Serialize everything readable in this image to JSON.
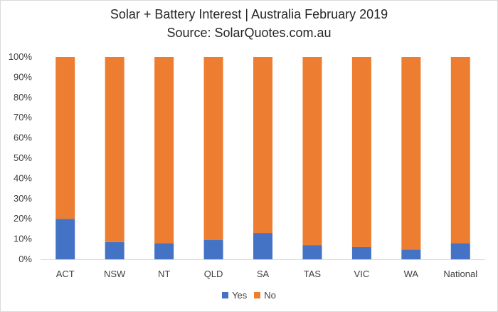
{
  "chart_data": {
    "type": "bar",
    "stacked": "percent",
    "title": "Solar + Battery Interest | Australia February 2019",
    "subtitle": "Source: SolarQuotes.com.au",
    "categories": [
      "ACT",
      "NSW",
      "NT",
      "QLD",
      "SA",
      "TAS",
      "VIC",
      "WA",
      "National"
    ],
    "series": [
      {
        "name": "Yes",
        "color": "#4472c4",
        "values": [
          20,
          8.5,
          8,
          9.5,
          13,
          7,
          6,
          4.8,
          8
        ]
      },
      {
        "name": "No",
        "color": "#ed7d31",
        "values": [
          80,
          91.5,
          92,
          90.5,
          87,
          93,
          94,
          95.2,
          92
        ]
      }
    ],
    "ylim": [
      0,
      100
    ],
    "yticks": [
      "0%",
      "10%",
      "20%",
      "30%",
      "40%",
      "50%",
      "60%",
      "70%",
      "80%",
      "90%",
      "100%"
    ],
    "grid": false,
    "legend_position": "bottom"
  }
}
